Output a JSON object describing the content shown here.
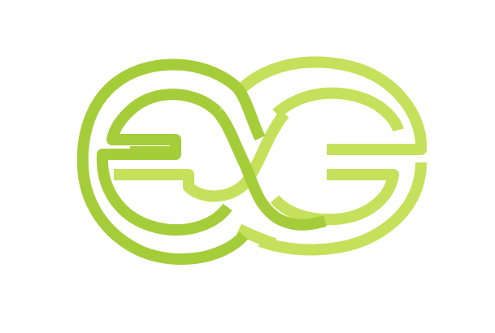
{
  "logo": {
    "monogram": "EG",
    "colors": {
      "primary": "#a5cd3a",
      "secondary": "#c5e05a",
      "background": "#ffffff"
    }
  }
}
